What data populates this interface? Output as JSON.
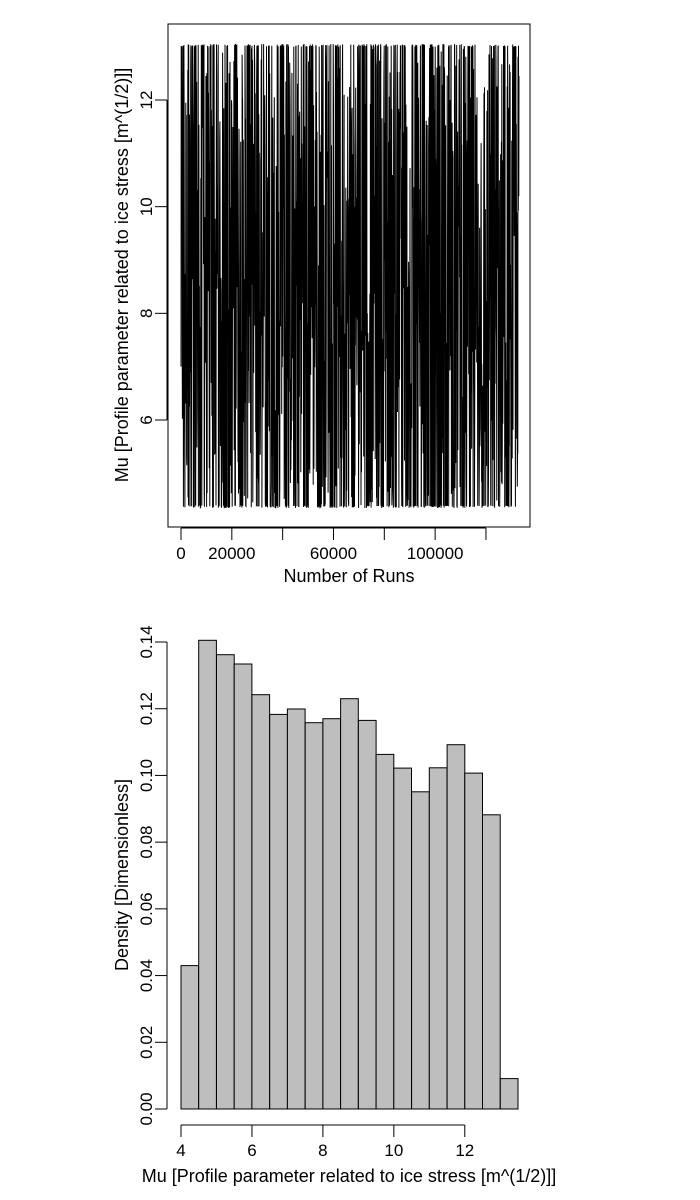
{
  "chart_data": [
    {
      "type": "line",
      "title": "",
      "xlabel": "Number of Runs",
      "ylabel": "Mu [Profile parameter related to ice stress [m^(1/2)]]",
      "xlim": [
        0,
        133000
      ],
      "ylim": [
        4.35,
        13.05
      ],
      "x_ticks": [
        0,
        20000,
        40000,
        60000,
        80000,
        100000,
        120000
      ],
      "x_tick_labels": [
        "0",
        "20000",
        "",
        "60000",
        "",
        "100000",
        ""
      ],
      "y_ticks": [
        6,
        8,
        10,
        12
      ],
      "y_tick_labels": [
        "6",
        "8",
        "10",
        "12"
      ],
      "grid": false,
      "series": [
        {
          "x": [
            0,
            133000
          ],
          "y_min": 4.35,
          "y_max": 13.05,
          "n_runs": 133000
        }
      ]
    },
    {
      "type": "bar",
      "title": "",
      "xlabel": "Mu [Profile parameter related to ice stress [m^(1/2)]]",
      "ylabel": "Density [Dimensionless]",
      "xlim": [
        4,
        13.5
      ],
      "ylim": [
        0,
        0.14
      ],
      "x_ticks": [
        4,
        6,
        8,
        10,
        12
      ],
      "x_tick_labels": [
        "4",
        "6",
        "8",
        "10",
        "12"
      ],
      "y_ticks": [
        0,
        0.02,
        0.04,
        0.06,
        0.08,
        0.1,
        0.12,
        0.14
      ],
      "y_tick_labels": [
        "0.00",
        "0.02",
        "0.04",
        "0.06",
        "0.08",
        "0.10",
        "0.12",
        "0.14"
      ],
      "grid": false,
      "bins": [
        [
          4,
          4.5
        ],
        [
          4.5,
          5
        ],
        [
          5,
          5.5
        ],
        [
          5.5,
          6
        ],
        [
          6,
          6.5
        ],
        [
          6.5,
          7
        ],
        [
          7,
          7.5
        ],
        [
          7.5,
          8
        ],
        [
          8,
          8.5
        ],
        [
          8.5,
          9
        ],
        [
          9,
          9.5
        ],
        [
          9.5,
          10
        ],
        [
          10,
          10.5
        ],
        [
          10.5,
          11
        ],
        [
          11,
          11.5
        ],
        [
          11.5,
          12
        ],
        [
          12,
          12.5
        ],
        [
          12.5,
          13
        ],
        [
          13,
          13.5
        ]
      ],
      "values": [
        0.043,
        0.1405,
        0.1362,
        0.1334,
        0.1242,
        0.1183,
        0.1199,
        0.1158,
        0.117,
        0.123,
        0.1165,
        0.1063,
        0.1022,
        0.0951,
        0.1023,
        0.1092,
        0.1007,
        0.0882,
        0.0091
      ],
      "bar_color": "#bebebe"
    }
  ]
}
